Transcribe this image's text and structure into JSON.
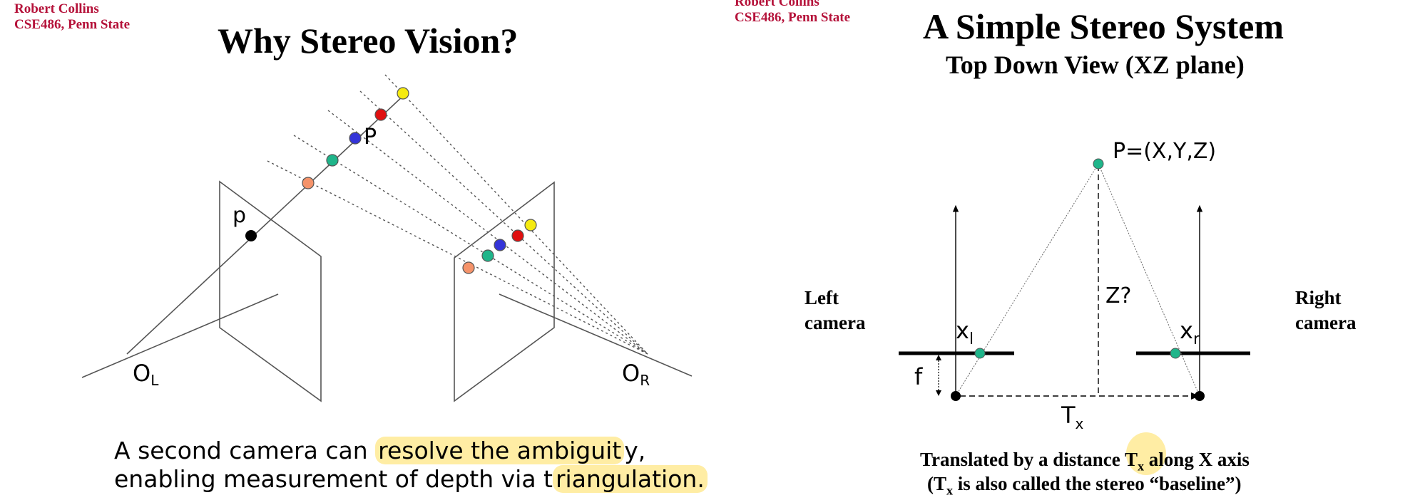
{
  "left_slide": {
    "author_name": "Robert Collins",
    "author_affil": "CSE486, Penn State",
    "title": "Why Stereo Vision?",
    "labels": {
      "point_P": "P",
      "point_p": "p",
      "origin_left_main": "O",
      "origin_left_sub": "L",
      "origin_right_main": "O",
      "origin_right_sub": "R"
    },
    "caption_line1_pre": "A second camera can ",
    "caption_line1_hl": "resolve the ambiguit",
    "caption_line1_post": "y,",
    "caption_line2_pre": "enabling measurement of depth via t",
    "caption_line2_hl": "riangulation."
  },
  "right_slide": {
    "author_name": "Robert Collins",
    "author_affil": "CSE486, Penn State",
    "title": "A Simple Stereo System",
    "subtitle": "Top Down View (XZ plane)",
    "labels": {
      "point": "P=(X,Y,Z)",
      "depth": "Z?",
      "xl_main": "x",
      "xl_sub": "l",
      "xr_main": "x",
      "xr_sub": "r",
      "focal": "f",
      "baseline_main": "T",
      "baseline_sub": "x",
      "left_camera_1": "Left",
      "left_camera_2": "camera",
      "right_camera_1": "Right",
      "right_camera_2": "camera"
    },
    "caption_line1_pre": "Translated by a distance T",
    "caption_line1_sub": "x",
    "caption_line1_post": " along X axis",
    "caption_line2_pre": "(T",
    "caption_line2_sub": "x",
    "caption_line2_post": " is also called the stereo “baseline”)"
  },
  "colors": {
    "author_red": "#b5123a",
    "highlight": "#ffde5a",
    "teal": "#1fb58a",
    "orange": "#f5936a",
    "blue": "#3434d8",
    "red": "#e01010",
    "yellow": "#f5ea10"
  }
}
